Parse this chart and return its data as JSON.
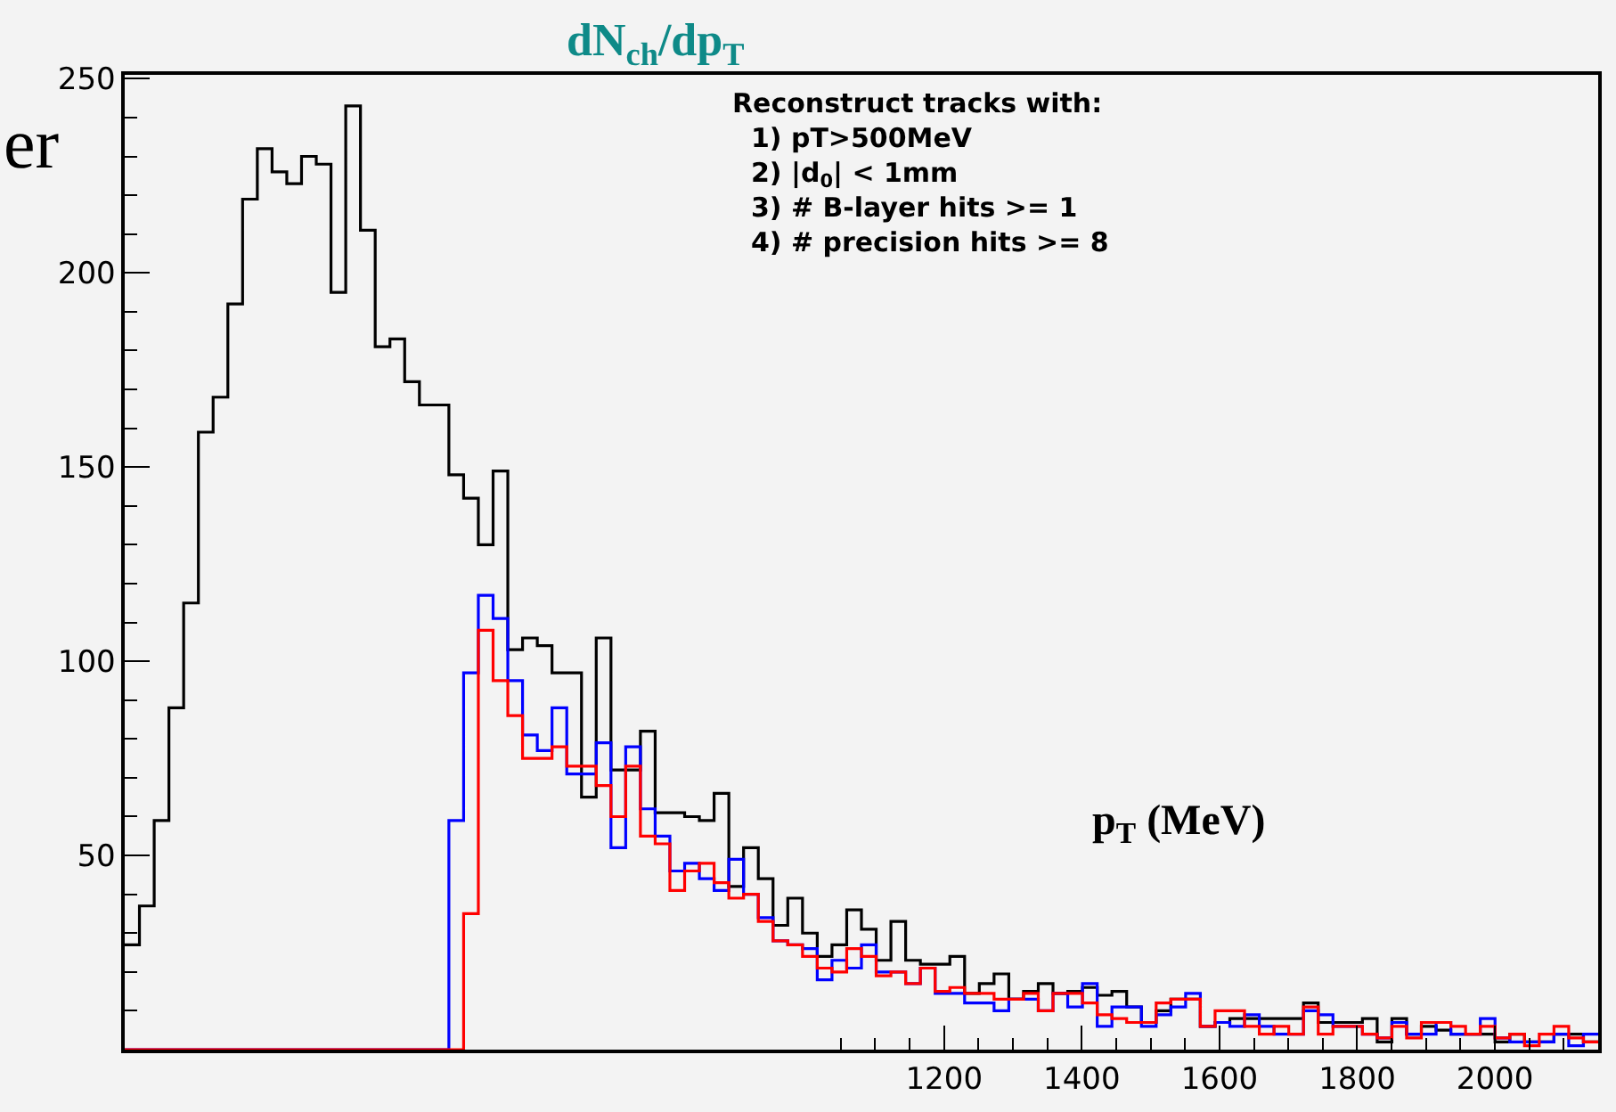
{
  "chart_data": {
    "type": "histogram",
    "title": "dN$_{ch}$/dp$_{T}$",
    "xlabel": "p$_{T}$ (MeV)",
    "annotations": [
      "Reconstruct tracks with:\n  1) pT>500MeV\n  2) |d$_{0}$| < 1mm\n  3) # B-layer hits >= 1\n  4) # precision hits >= 8",
      "er"
    ],
    "bins": [
      10,
      31.4,
      52.8,
      74.2,
      95.6,
      117,
      138.4,
      159.8,
      181.2,
      202.6,
      224,
      245.4,
      266.8,
      288.2,
      309.6,
      331,
      352.4,
      373.8,
      395.2,
      416.6,
      438,
      459.4,
      480.8,
      502.2,
      523.6,
      545,
      566.4,
      587.8,
      609.2,
      630.6,
      652,
      673.4,
      694.8,
      716.2,
      737.6,
      759,
      780.4,
      801.8,
      823.2,
      844.6,
      866,
      887.4,
      908.8,
      930.2,
      951.6,
      973,
      994.4,
      1015.8,
      1037.2,
      1058.6,
      1080,
      1101.4,
      1122.8,
      1144.2,
      1165.6,
      1187,
      1208.4,
      1229.8,
      1251.2,
      1272.6,
      1294,
      1315.4,
      1336.8,
      1358.2,
      1379.6,
      1401,
      1422.4,
      1443.8,
      1465.2,
      1486.6,
      1508,
      1529.4,
      1550.8,
      1572.2,
      1593.6,
      1615,
      1636.4,
      1657.8,
      1679.2,
      1700.6,
      1722,
      1743.4,
      1764.8,
      1786.2,
      1807.6,
      1829,
      1850.4,
      1871.8,
      1893.2,
      1914.6,
      1936,
      1957.4,
      1978.8,
      2000.2,
      2021.6,
      2043,
      2064.4,
      2085.8,
      2107.2,
      2128.6,
      2150
    ],
    "series": [
      {
        "color": "#000000",
        "values": [
          27,
          37,
          59,
          88,
          115,
          159,
          168,
          192,
          219,
          232,
          226,
          223,
          230,
          228,
          195,
          243,
          211,
          181,
          183,
          172,
          166,
          166,
          148,
          142,
          130,
          149,
          103,
          106,
          104,
          97,
          97,
          65,
          106,
          72,
          72,
          82,
          61,
          61,
          60,
          59,
          66,
          42,
          52,
          44,
          32,
          39,
          30,
          24,
          27,
          36,
          31,
          23,
          33,
          23,
          22,
          22,
          24,
          14.5,
          17,
          19.5,
          13,
          15,
          17,
          14.5,
          15,
          16,
          14,
          15,
          11,
          7,
          10,
          13,
          13,
          6,
          7,
          8,
          8,
          8,
          8,
          8,
          12,
          7,
          7,
          7,
          8,
          2,
          8,
          4,
          6,
          5,
          4,
          4,
          4,
          2,
          4,
          2,
          2,
          4,
          4,
          2
        ]
      },
      {
        "color": "#0000ff",
        "values": [
          0,
          0,
          0,
          0,
          0,
          0,
          0,
          0,
          0,
          0,
          0,
          0,
          0,
          0,
          0,
          0,
          0,
          0,
          0,
          0,
          0,
          0,
          59,
          97,
          117,
          111,
          95,
          81,
          77,
          88,
          71,
          71,
          79,
          52,
          78,
          62,
          55,
          46,
          48,
          44,
          41,
          49,
          40,
          34,
          28,
          27,
          26,
          18,
          23,
          21,
          27,
          20,
          20,
          17,
          21,
          14.5,
          14.5,
          12,
          12,
          10,
          13,
          13,
          10,
          14.5,
          11,
          17,
          6,
          11,
          11,
          6,
          9,
          11,
          14.5,
          6,
          7,
          6,
          9,
          6,
          4,
          4,
          10,
          9,
          6,
          6,
          4,
          3,
          7,
          4,
          4,
          7,
          4,
          4,
          8,
          3,
          2,
          2,
          2,
          4,
          1,
          4
        ]
      },
      {
        "color": "#ff0000",
        "values": [
          0,
          0,
          0,
          0,
          0,
          0,
          0,
          0,
          0,
          0,
          0,
          0,
          0,
          0,
          0,
          0,
          0,
          0,
          0,
          0,
          0,
          0,
          0,
          35,
          108,
          95,
          86,
          75,
          75,
          78,
          73,
          73,
          68,
          60,
          73,
          55,
          53,
          41,
          46,
          48,
          43,
          39,
          40,
          33,
          28,
          27,
          24,
          21,
          20,
          26,
          24,
          19,
          20,
          17,
          21,
          15,
          16,
          14.5,
          14.5,
          13,
          13,
          14.5,
          10,
          14.5,
          14.5,
          12,
          9,
          8,
          7,
          7,
          12,
          13,
          13,
          6,
          10,
          10,
          6,
          4,
          6,
          4,
          11,
          4,
          6,
          6,
          4,
          3,
          6,
          3,
          7,
          7,
          6,
          4,
          6,
          3,
          4,
          1,
          4,
          6,
          3,
          2
        ]
      }
    ],
    "xlim": [
      10,
      2150
    ],
    "ylim": [
      0,
      251
    ],
    "xticks": [
      {
        "value": 1050,
        "label": null
      },
      {
        "value": 1100,
        "label": null
      },
      {
        "value": 1150,
        "label": null
      },
      1200,
      {
        "value": 1250,
        "label": null
      },
      {
        "value": 1300,
        "label": null
      },
      {
        "value": 1350,
        "label": null
      },
      1400,
      {
        "value": 1450,
        "label": null
      },
      {
        "value": 1500,
        "label": null
      },
      {
        "value": 1550,
        "label": null
      },
      1600,
      {
        "value": 1650,
        "label": null
      },
      {
        "value": 1700,
        "label": null
      },
      {
        "value": 1750,
        "label": null
      },
      1800,
      {
        "value": 1850,
        "label": null
      },
      {
        "value": 1900,
        "label": null
      },
      {
        "value": 1950,
        "label": null
      },
      2000,
      {
        "value": 2050,
        "label": null
      },
      {
        "value": 2100,
        "label": null
      }
    ],
    "yticks": [
      {
        "value": 10,
        "label": null
      },
      {
        "value": 20,
        "label": null
      },
      {
        "value": 30,
        "label": null
      },
      {
        "value": 40,
        "label": null
      },
      50,
      {
        "value": 60,
        "label": null
      },
      {
        "value": 70,
        "label": null
      },
      {
        "value": 80,
        "label": null
      },
      {
        "value": 90,
        "label": null
      },
      100,
      {
        "value": 110,
        "label": null
      },
      {
        "value": 120,
        "label": null
      },
      {
        "value": 130,
        "label": null
      },
      {
        "value": 140,
        "label": null
      },
      150,
      {
        "value": 160,
        "label": null
      },
      {
        "value": 170,
        "label": null
      },
      {
        "value": 180,
        "label": null
      },
      {
        "value": 190,
        "label": null
      },
      200,
      {
        "value": 210,
        "label": null
      },
      {
        "value": 220,
        "label": null
      },
      {
        "value": 230,
        "label": null
      },
      {
        "value": 240,
        "label": null
      },
      250
    ],
    "grid": false
  }
}
